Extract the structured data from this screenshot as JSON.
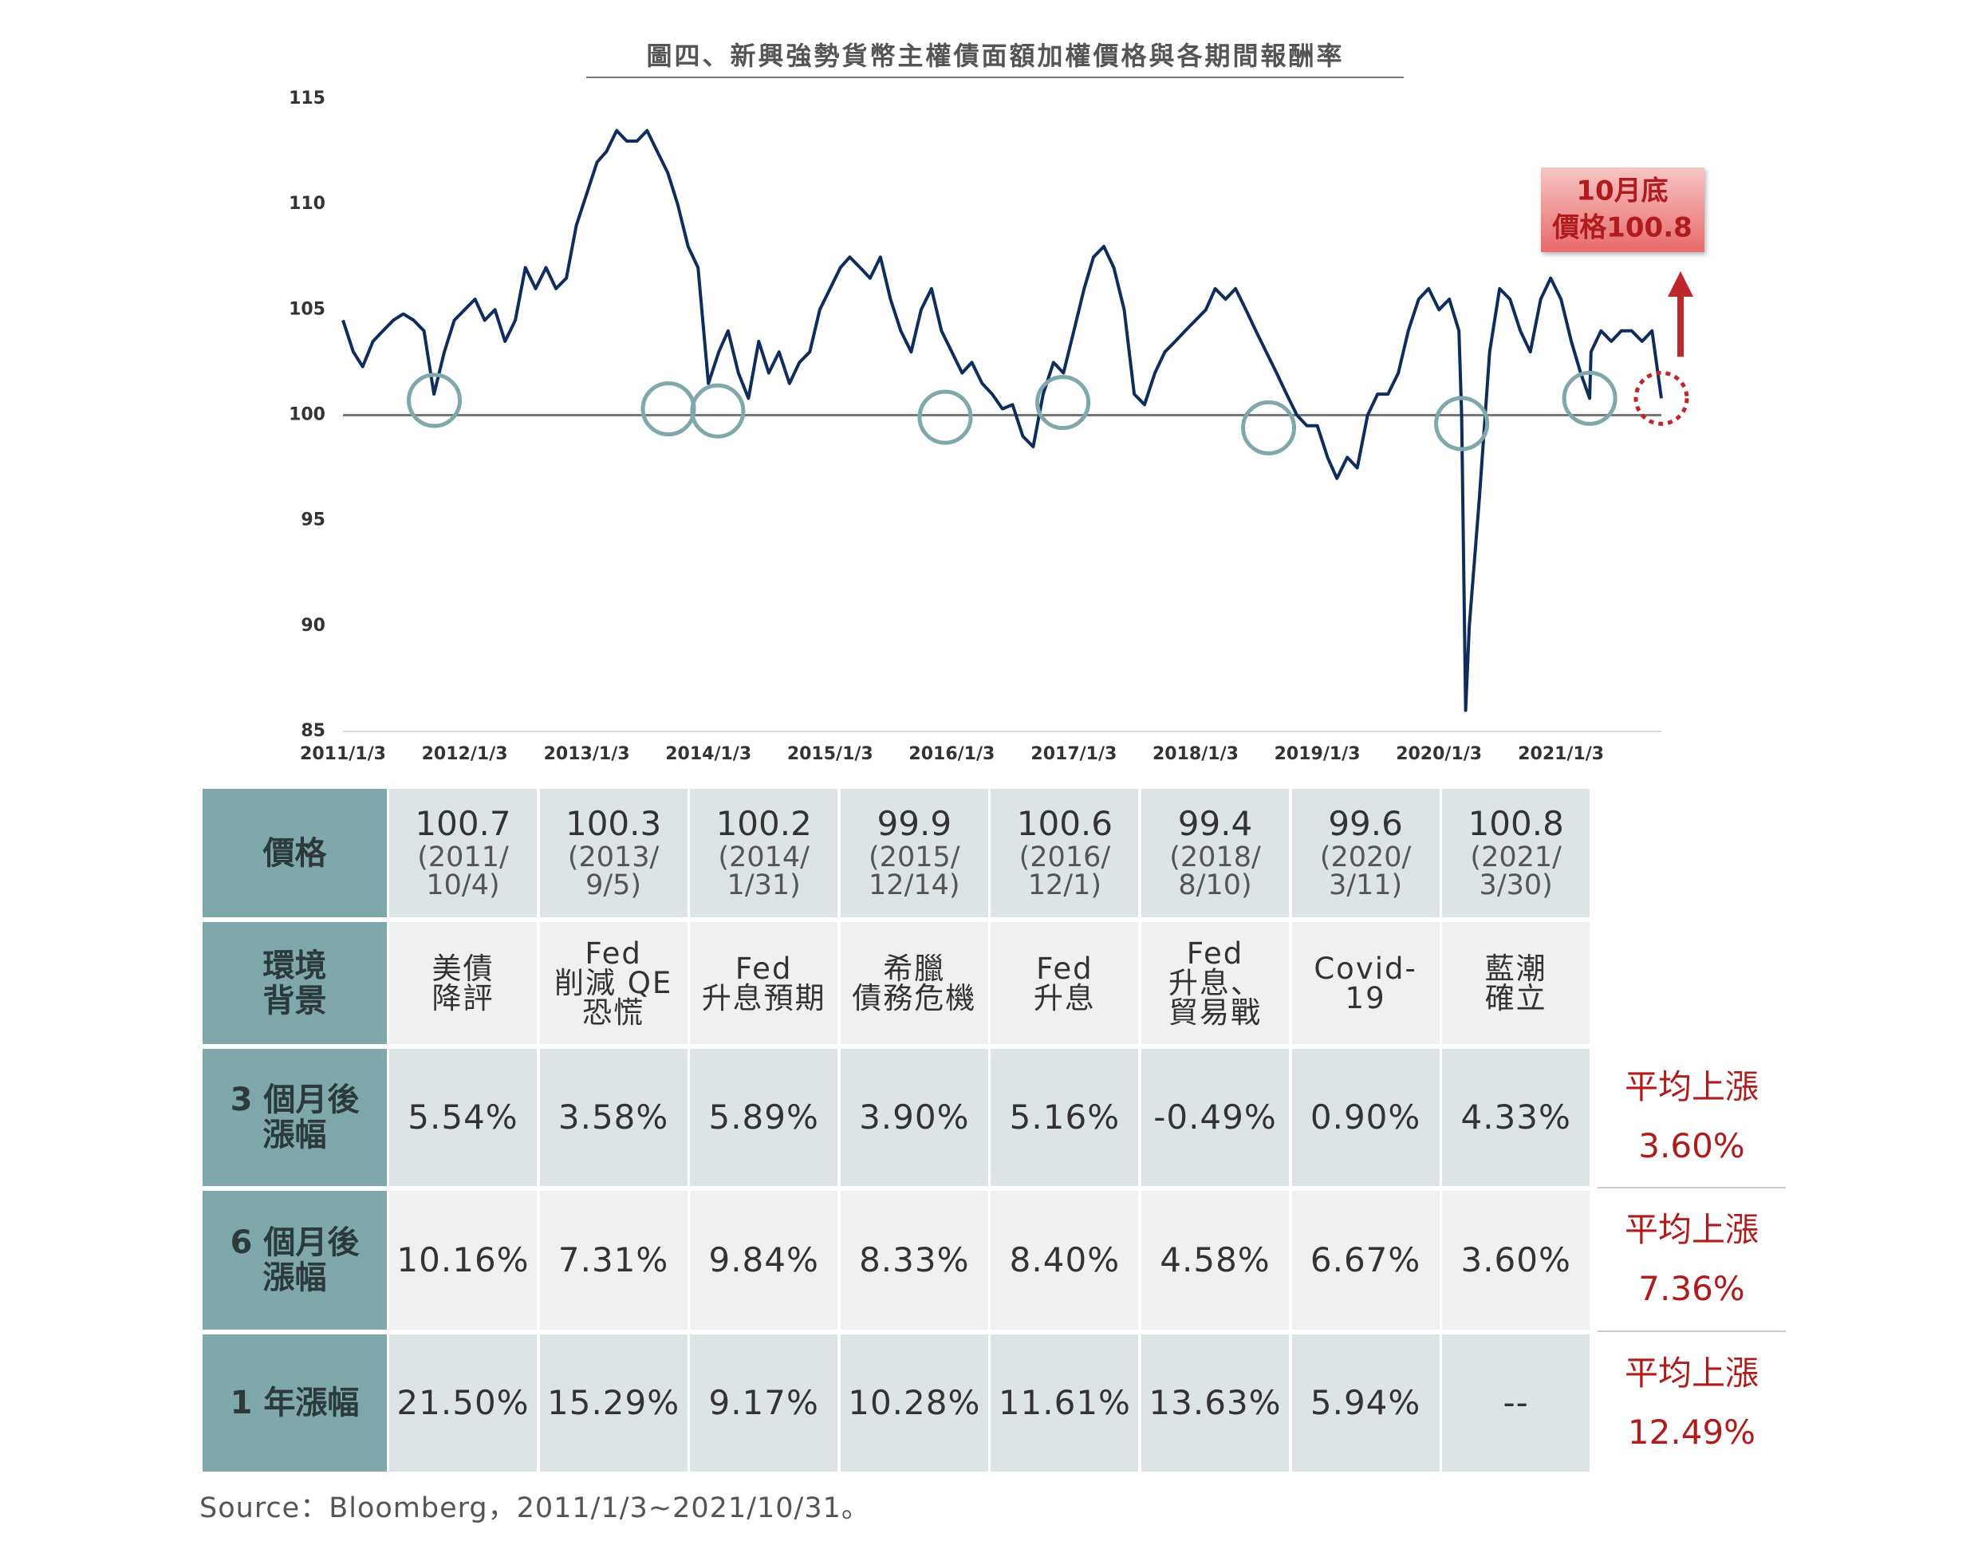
{
  "chart_data": {
    "type": "line",
    "title": "圖四、新興強勢貨幣主權債面額加權價格與各期間報酬率",
    "color": "#0f2d5c",
    "x": [
      "2011/1/3",
      "2011/2/3",
      "2011/3/3",
      "2011/4/3",
      "2011/5/3",
      "2011/6/3",
      "2011/7/3",
      "2011/8/3",
      "2011/9/3",
      "2011/10/3",
      "2011/11/3",
      "2011/12/3",
      "2012/1/3",
      "2012/2/3",
      "2012/3/3",
      "2012/4/3",
      "2012/5/3",
      "2012/6/3",
      "2012/7/3",
      "2012/8/3",
      "2012/9/3",
      "2012/10/3",
      "2012/11/3",
      "2012/12/3",
      "2013/1/3",
      "2013/2/3",
      "2013/3/3",
      "2013/4/3",
      "2013/5/3",
      "2013/6/3",
      "2013/7/3",
      "2013/8/3",
      "2013/9/3",
      "2013/10/3",
      "2013/11/3",
      "2013/12/3",
      "2014/1/3",
      "2014/2/3",
      "2014/3/3",
      "2014/4/3",
      "2014/5/3",
      "2014/6/3",
      "2014/7/3",
      "2014/8/3",
      "2014/9/3",
      "2014/10/3",
      "2014/11/3",
      "2014/12/3",
      "2015/1/3",
      "2015/2/3",
      "2015/3/3",
      "2015/4/3",
      "2015/5/3",
      "2015/6/3",
      "2015/7/3",
      "2015/8/3",
      "2015/9/3",
      "2015/10/3",
      "2015/11/3",
      "2015/12/3",
      "2016/1/3",
      "2016/2/3",
      "2016/3/3",
      "2016/4/3",
      "2016/5/3",
      "2016/6/3",
      "2016/7/3",
      "2016/8/3",
      "2016/9/3",
      "2016/10/3",
      "2016/11/3",
      "2016/12/3",
      "2017/1/3",
      "2017/2/3",
      "2017/3/3",
      "2017/4/3",
      "2017/5/3",
      "2017/6/3",
      "2017/7/3",
      "2017/8/3",
      "2017/9/3",
      "2017/10/3",
      "2017/11/3",
      "2017/12/3",
      "2018/1/3",
      "2018/2/3",
      "2018/3/3",
      "2018/4/3",
      "2018/5/3",
      "2018/6/3",
      "2018/7/3",
      "2018/8/3",
      "2018/9/3",
      "2018/10/3",
      "2018/11/3",
      "2018/12/3",
      "2019/1/3",
      "2019/2/3",
      "2019/3/3",
      "2019/4/3",
      "2019/5/3",
      "2019/6/3",
      "2019/7/3",
      "2019/8/3",
      "2019/9/3",
      "2019/10/3",
      "2019/11/3",
      "2019/12/3",
      "2020/1/3",
      "2020/2/3",
      "2020/3/3",
      "2020/3/11",
      "2020/3/23",
      "2020/4/3",
      "2020/5/3",
      "2020/6/3",
      "2020/7/3",
      "2020/8/3",
      "2020/9/3",
      "2020/10/3",
      "2020/11/3",
      "2020/12/3",
      "2021/1/3",
      "2021/2/3",
      "2021/3/3",
      "2021/3/30",
      "2021/4/3",
      "2021/5/3",
      "2021/6/3",
      "2021/7/3",
      "2021/8/3",
      "2021/9/3",
      "2021/10/3",
      "2021/10/31"
    ],
    "values": [
      104.5,
      103,
      102.3,
      103.5,
      104,
      104.5,
      104.8,
      104.5,
      104,
      101,
      103,
      104.5,
      105,
      105.5,
      104.5,
      105,
      103.5,
      104.5,
      107,
      106,
      107,
      106,
      106.5,
      109,
      110.5,
      112,
      112.5,
      113.5,
      113,
      113,
      113.5,
      112.5,
      111.5,
      110,
      108,
      107,
      101.5,
      103,
      104,
      102,
      100.8,
      103.5,
      102,
      103,
      101.5,
      102.5,
      103,
      105,
      106,
      107,
      107.5,
      107,
      106.5,
      107.5,
      105.5,
      104,
      103,
      105,
      106,
      104,
      103,
      102,
      102.5,
      101.5,
      101,
      100.3,
      100.5,
      99,
      98.5,
      101,
      102.5,
      102,
      104,
      106,
      107.5,
      108,
      107,
      105,
      101,
      100.5,
      102,
      103,
      103.5,
      104,
      104.5,
      105,
      106,
      105.5,
      106,
      105,
      104,
      103,
      102,
      101,
      100,
      99.5,
      99.5,
      98,
      97,
      98,
      97.5,
      100,
      101,
      101,
      102,
      104,
      105.5,
      106,
      105,
      105.5,
      104,
      100,
      86,
      90,
      96,
      103,
      106,
      105.5,
      104,
      103,
      105.5,
      106.5,
      105.5,
      103.5,
      102,
      100.8,
      103,
      104,
      103.5,
      104,
      104,
      103.5,
      104,
      100.8
    ],
    "xlim": [
      "2011/1/3",
      "2021/10/31"
    ],
    "xticks": [
      "2011/1/3",
      "2012/1/3",
      "2013/1/3",
      "2014/1/3",
      "2015/1/3",
      "2016/1/3",
      "2017/1/3",
      "2018/1/3",
      "2019/1/3",
      "2020/1/3",
      "2021/1/3"
    ],
    "ylim": [
      85,
      115
    ],
    "yticks": [
      85,
      90,
      95,
      100,
      105,
      110,
      115
    ],
    "reference_line": 100,
    "marker_color": "#7fa8ab",
    "markers": [
      {
        "x": "2011/10/4",
        "value": 100.7
      },
      {
        "x": "2013/9/5",
        "value": 100.3
      },
      {
        "x": "2014/1/31",
        "value": 100.2
      },
      {
        "x": "2015/12/14",
        "value": 99.9
      },
      {
        "x": "2016/12/1",
        "value": 100.6
      },
      {
        "x": "2018/8/10",
        "value": 99.4
      },
      {
        "x": "2020/3/11",
        "value": 99.6
      },
      {
        "x": "2021/3/30",
        "value": 100.8
      }
    ],
    "current": {
      "x": "2021/10/31",
      "value": 100.8,
      "color": "#c0272d",
      "callout": [
        "10月底",
        "價格100.8"
      ]
    }
  },
  "table": {
    "rows": [
      {
        "header": [
          "價格"
        ],
        "cells": [
          {
            "price": "100.7",
            "date": [
              "(2011/",
              "10/4)"
            ]
          },
          {
            "price": "100.3",
            "date": [
              "(2013/",
              "9/5)"
            ]
          },
          {
            "price": "100.2",
            "date": [
              "(2014/",
              "1/31)"
            ]
          },
          {
            "price": "99.9",
            "date": [
              "(2015/",
              "12/14)"
            ]
          },
          {
            "price": "100.6",
            "date": [
              "(2016/",
              "12/1)"
            ]
          },
          {
            "price": "99.4",
            "date": [
              "(2018/",
              "8/10)"
            ]
          },
          {
            "price": "99.6",
            "date": [
              "(2020/",
              "3/11)"
            ]
          },
          {
            "price": "100.8",
            "date": [
              "(2021/",
              "3/30)"
            ]
          }
        ]
      },
      {
        "header": [
          "環境",
          "背景"
        ],
        "cells": [
          [
            "美債",
            "降評"
          ],
          [
            "Fed",
            "削減 QE",
            "恐慌"
          ],
          [
            "Fed",
            "升息預期"
          ],
          [
            "希臘",
            "債務危機"
          ],
          [
            "Fed",
            "升息"
          ],
          [
            "Fed",
            "升息、",
            "貿易戰"
          ],
          [
            "Covid-",
            "19"
          ],
          [
            "藍潮",
            "確立"
          ]
        ]
      },
      {
        "header": [
          "3 個月後",
          "漲幅"
        ],
        "cells": [
          "5.54%",
          "3.58%",
          "5.89%",
          "3.90%",
          "5.16%",
          "-0.49%",
          "0.90%",
          "4.33%"
        ],
        "average": [
          "平均上漲",
          "3.60%"
        ]
      },
      {
        "header": [
          "6 個月後",
          "漲幅"
        ],
        "cells": [
          "10.16%",
          "7.31%",
          "9.84%",
          "8.33%",
          "8.40%",
          "4.58%",
          "6.67%",
          "3.60%"
        ],
        "average": [
          "平均上漲",
          "7.36%"
        ]
      },
      {
        "header": [
          "1 年漲幅"
        ],
        "cells": [
          "21.50%",
          "15.29%",
          "9.17%",
          "10.28%",
          "11.61%",
          "13.63%",
          "5.94%",
          "--"
        ],
        "average": [
          "平均上漲",
          "12.49%"
        ]
      }
    ]
  },
  "source": "Source：Bloomberg，2011/1/3~2021/10/31。"
}
